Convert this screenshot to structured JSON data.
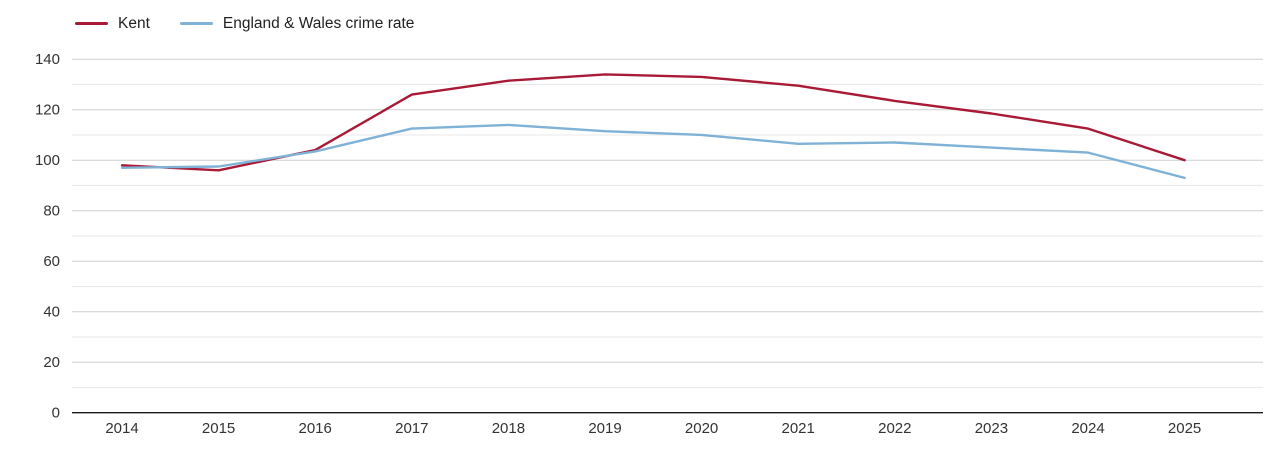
{
  "chart_data": {
    "type": "line",
    "title": "",
    "xlabel": "",
    "ylabel": "",
    "x": [
      2014,
      2015,
      2016,
      2017,
      2018,
      2019,
      2020,
      2021,
      2022,
      2023,
      2024,
      2025
    ],
    "series": [
      {
        "name": "Kent",
        "color": "#a81a35",
        "values": [
          98,
          96,
          104,
          126,
          131.5,
          134,
          133,
          129.5,
          123.5,
          118.5,
          112.5,
          100
        ]
      },
      {
        "name": "England & Wales crime rate",
        "color": "#7fb2d6",
        "values": [
          97,
          97.5,
          103.5,
          112.5,
          114,
          111.5,
          110,
          106.5,
          107,
          105,
          103,
          93
        ]
      }
    ],
    "ylim": [
      0,
      140
    ],
    "y_major_ticks": [
      0,
      20,
      40,
      60,
      80,
      100,
      120,
      140
    ],
    "y_minor_step": 10,
    "grid": "horizontal-only",
    "legend_position": "top-left"
  },
  "colors": {
    "background": "#ffffff",
    "major_gridline": "#cfcfcf",
    "minor_gridline": "#e9e9e9",
    "axis_line": "#1a1a1a",
    "tick_label": "#333333",
    "legend_text": "#222222"
  }
}
